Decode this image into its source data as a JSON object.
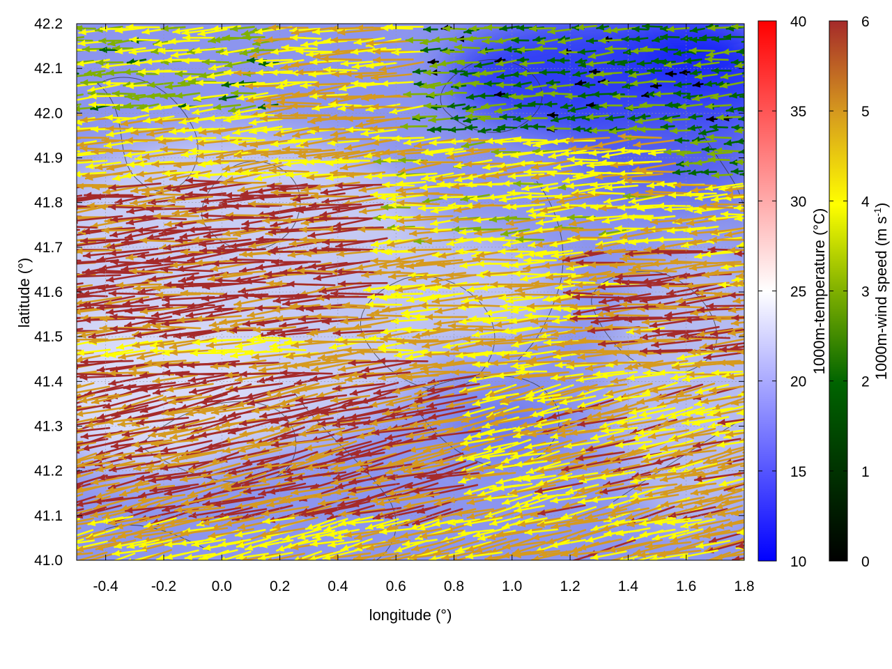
{
  "chart_data": {
    "type": "vector-field",
    "xlabel": "longitude (°)",
    "ylabel": "latitude (°)",
    "xlim": [
      -0.5,
      1.8
    ],
    "ylim": [
      41.0,
      42.2
    ],
    "x_ticks": [
      "-0.4",
      "-0.2",
      "0.0",
      "0.2",
      "0.4",
      "0.6",
      "0.8",
      "1.0",
      "1.2",
      "1.4",
      "1.6",
      "1.8"
    ],
    "x_tick_values": [
      -0.4,
      -0.2,
      0.0,
      0.2,
      0.4,
      0.6,
      0.8,
      1.0,
      1.2,
      1.4,
      1.6,
      1.8
    ],
    "y_ticks": [
      "41.0",
      "41.1",
      "41.2",
      "41.3",
      "41.4",
      "41.5",
      "41.6",
      "41.7",
      "41.8",
      "41.9",
      "42.0",
      "42.1",
      "42.2"
    ],
    "y_tick_values": [
      41.0,
      41.1,
      41.2,
      41.3,
      41.4,
      41.5,
      41.6,
      41.7,
      41.8,
      41.9,
      42.0,
      42.1,
      42.2
    ],
    "grid": true,
    "temperature_colorbar": {
      "label": "1000m-temperature (°C)",
      "range": [
        10,
        40
      ],
      "ticks": [
        "10",
        "15",
        "20",
        "25",
        "30",
        "35",
        "40"
      ],
      "tick_values": [
        10,
        15,
        20,
        25,
        30,
        35,
        40
      ],
      "colors": [
        "#0000ff",
        "#ffffff",
        "#ff0000"
      ]
    },
    "wind_colorbar": {
      "label_main": "1000m-wind speed (m s",
      "label_sup": "-1",
      "label_end": ")",
      "range": [
        0,
        6
      ],
      "ticks": [
        "0",
        "1",
        "2",
        "3",
        "4",
        "5",
        "6"
      ],
      "tick_values": [
        0,
        1,
        2,
        3,
        4,
        5,
        6
      ],
      "colors": [
        "#000000",
        "#006400",
        "#80b000",
        "#ffff00",
        "#d69a1e",
        "#a52a2a"
      ]
    },
    "wind_direction": "westward (easterly flow), stronger in the west and south",
    "wind_speed_regions": [
      {
        "region": "west-central band lat 41.5-41.8",
        "speed": 5.5
      },
      {
        "region": "northeast lat 41.9-42.2, lon 0.7-1.7",
        "speed": 1.5
      },
      {
        "region": "southeast lat 41.0-41.4, lon 1.2-1.8",
        "speed": 4.5
      }
    ]
  }
}
